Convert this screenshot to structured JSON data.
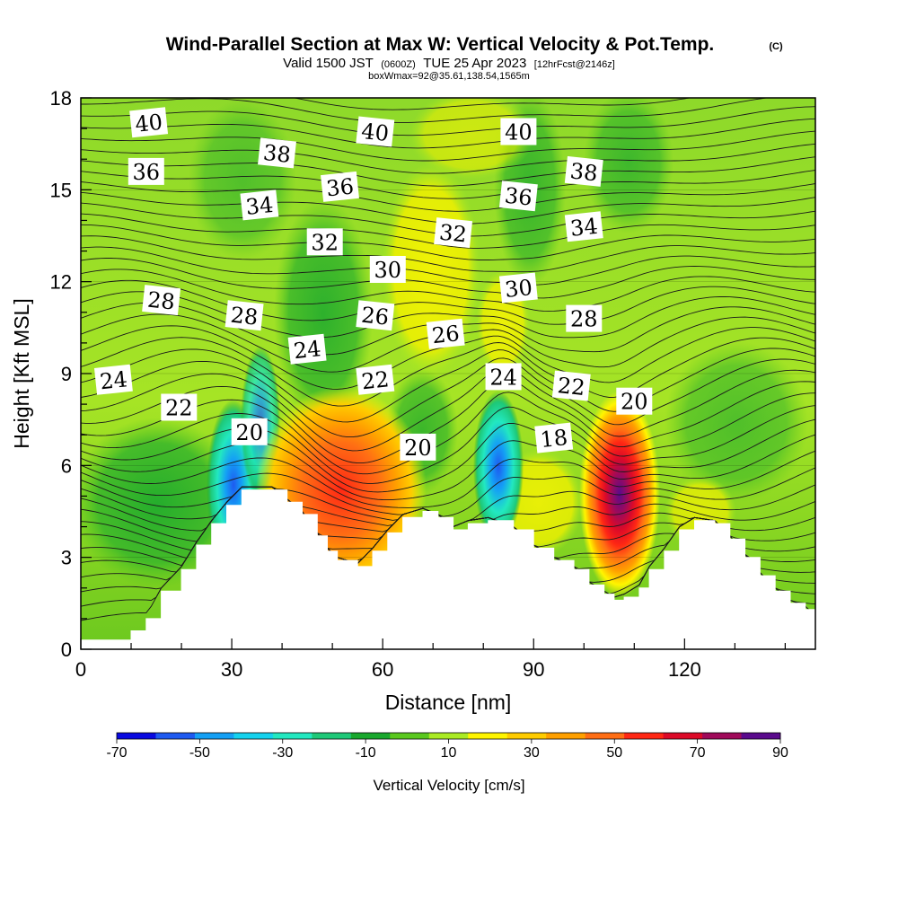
{
  "header": {
    "title": "Wind-Parallel Section at Max W: Vertical Velocity & Pot.Temp.",
    "copyright": "(C)",
    "valid_prefix": "Valid 1500 JST",
    "valid_utc": "(0600Z)",
    "valid_date": "TUE 25 Apr 2023",
    "forecast": "[12hrFcst@2146z]",
    "box_info": "boxWmax=92@35.61,138.54,1565m"
  },
  "chart_data": {
    "type": "heatmap",
    "title": "Wind-Parallel Section at Max W: Vertical Velocity & Pot.Temp.",
    "xlabel": "Distance [nm]",
    "ylabel": "Height [Kft MSL]",
    "xlim": [
      0,
      146
    ],
    "ylim": [
      0,
      18
    ],
    "x_ticks": [
      "0",
      "30",
      "60",
      "90",
      "120"
    ],
    "x_tick_values": [
      0,
      30,
      60,
      90,
      120
    ],
    "y_ticks": [
      "0",
      "3",
      "6",
      "9",
      "12",
      "15",
      "18"
    ],
    "y_tick_values": [
      0,
      3,
      6,
      9,
      12,
      15,
      18
    ],
    "colorbar": {
      "label": "Vertical Velocity [cm/s]",
      "tick_labels": [
        "-70",
        "-50",
        "-30",
        "-10",
        "10",
        "30",
        "50",
        "70",
        "90"
      ],
      "levels": [
        -70,
        -60,
        -50,
        -40,
        -30,
        -20,
        -10,
        0,
        10,
        20,
        30,
        40,
        50,
        60,
        70,
        80,
        90
      ],
      "colors": [
        "#0a0ae0",
        "#1e5af0",
        "#14a0f5",
        "#14d2ee",
        "#22e8c0",
        "#1ec878",
        "#19a82d",
        "#5ac81e",
        "#aaeb23",
        "#fff500",
        "#ffcc00",
        "#ffa000",
        "#ff6e14",
        "#ff2814",
        "#dc0a28",
        "#a00a5a",
        "#5a0a8c"
      ]
    },
    "theta_contour_labels": [
      {
        "text": "40",
        "x": 13.5,
        "y": 17.2
      },
      {
        "text": "36",
        "x": 13,
        "y": 15.6
      },
      {
        "text": "28",
        "x": 16,
        "y": 11.4
      },
      {
        "text": "24",
        "x": 6.5,
        "y": 8.8
      },
      {
        "text": "22",
        "x": 19.5,
        "y": 7.9
      },
      {
        "text": "38",
        "x": 39,
        "y": 16.2
      },
      {
        "text": "34",
        "x": 35.5,
        "y": 14.5
      },
      {
        "text": "32",
        "x": 48.5,
        "y": 13.3
      },
      {
        "text": "28",
        "x": 32.5,
        "y": 10.9
      },
      {
        "text": "24",
        "x": 45,
        "y": 9.8
      },
      {
        "text": "20",
        "x": 33.5,
        "y": 7.1
      },
      {
        "text": "40",
        "x": 58.5,
        "y": 16.9
      },
      {
        "text": "36",
        "x": 51.5,
        "y": 15.1
      },
      {
        "text": "30",
        "x": 61,
        "y": 12.4
      },
      {
        "text": "26",
        "x": 58.5,
        "y": 10.9
      },
      {
        "text": "22",
        "x": 58.5,
        "y": 8.8
      },
      {
        "text": "20",
        "x": 67,
        "y": 6.6
      },
      {
        "text": "32",
        "x": 74,
        "y": 13.6
      },
      {
        "text": "26",
        "x": 72.5,
        "y": 10.3
      },
      {
        "text": "40",
        "x": 87,
        "y": 16.9
      },
      {
        "text": "36",
        "x": 87,
        "y": 14.8
      },
      {
        "text": "30",
        "x": 87,
        "y": 11.8
      },
      {
        "text": "24",
        "x": 84,
        "y": 8.9
      },
      {
        "text": "38",
        "x": 100,
        "y": 15.6
      },
      {
        "text": "34",
        "x": 100,
        "y": 13.8
      },
      {
        "text": "28",
        "x": 100,
        "y": 10.8
      },
      {
        "text": "22",
        "x": 97.5,
        "y": 8.6
      },
      {
        "text": "18",
        "x": 94,
        "y": 6.9
      },
      {
        "text": "20",
        "x": 110,
        "y": 8.1
      }
    ],
    "terrain": [
      [
        0,
        0.3
      ],
      [
        5,
        0.3
      ],
      [
        10,
        0.6
      ],
      [
        13,
        1.0
      ],
      [
        16,
        1.9
      ],
      [
        20,
        2.6
      ],
      [
        23,
        3.4
      ],
      [
        26,
        4.1
      ],
      [
        29,
        4.7
      ],
      [
        32,
        5.2
      ],
      [
        38,
        5.2
      ],
      [
        41,
        4.8
      ],
      [
        44,
        4.4
      ],
      [
        47,
        3.7
      ],
      [
        49,
        3.2
      ],
      [
        51,
        2.9
      ],
      [
        55,
        2.7
      ],
      [
        58,
        3.2
      ],
      [
        61,
        3.8
      ],
      [
        64,
        4.3
      ],
      [
        68,
        4.5
      ],
      [
        71,
        4.3
      ],
      [
        74,
        3.9
      ],
      [
        77,
        4.1
      ],
      [
        81,
        4.2
      ],
      [
        86,
        3.9
      ],
      [
        90,
        3.3
      ],
      [
        94,
        2.9
      ],
      [
        98,
        2.6
      ],
      [
        101,
        2.1
      ],
      [
        104,
        1.8
      ],
      [
        106,
        1.6
      ],
      [
        108,
        1.7
      ],
      [
        111,
        2.0
      ],
      [
        113,
        2.6
      ],
      [
        116,
        3.2
      ],
      [
        119,
        3.9
      ],
      [
        122,
        4.2
      ],
      [
        126,
        4.1
      ],
      [
        129,
        3.6
      ],
      [
        132,
        3.0
      ],
      [
        135,
        2.4
      ],
      [
        138,
        1.9
      ],
      [
        141,
        1.5
      ],
      [
        144,
        1.3
      ],
      [
        146,
        1.0
      ]
    ]
  }
}
